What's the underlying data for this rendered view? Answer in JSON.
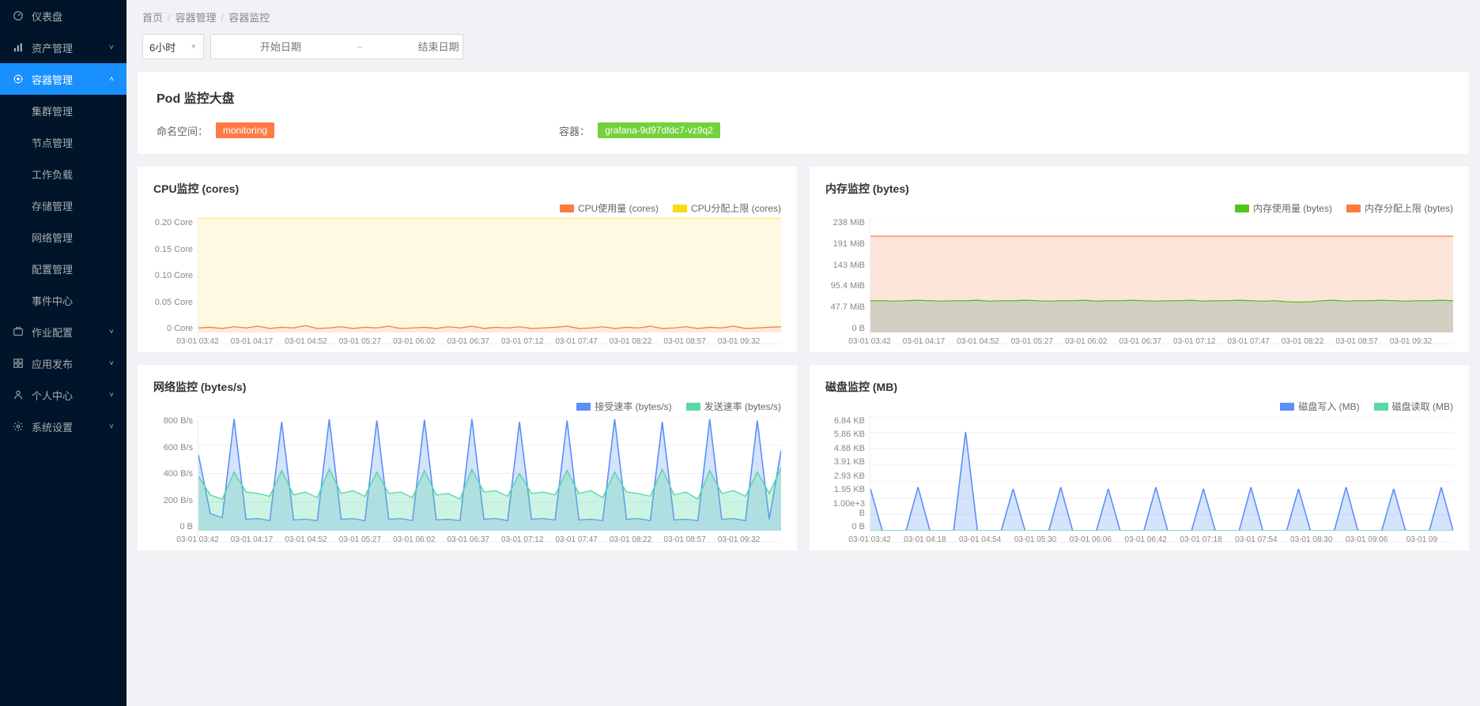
{
  "sidebar": {
    "items": [
      {
        "icon": "dashboard",
        "label": "仪表盘",
        "expandable": false
      },
      {
        "icon": "bars",
        "label": "资产管理",
        "expandable": true,
        "arrow": "down"
      },
      {
        "icon": "container",
        "label": "容器管理",
        "expandable": true,
        "arrow": "up",
        "active": true,
        "children": [
          "集群管理",
          "节点管理",
          "工作负载",
          "存储管理",
          "网络管理",
          "配置管理",
          "事件中心"
        ]
      },
      {
        "icon": "job",
        "label": "作业配置",
        "expandable": true,
        "arrow": "down"
      },
      {
        "icon": "deploy",
        "label": "应用发布",
        "expandable": true,
        "arrow": "down"
      },
      {
        "icon": "user",
        "label": "个人中心",
        "expandable": true,
        "arrow": "down"
      },
      {
        "icon": "gear",
        "label": "系统设置",
        "expandable": true,
        "arrow": "down"
      }
    ]
  },
  "breadcrumb": [
    "首页",
    "容器管理",
    "容器监控"
  ],
  "filter": {
    "time_value": "6小时",
    "start_placeholder": "开始日期",
    "end_placeholder": "结束日期"
  },
  "header": {
    "title": "Pod 监控大盘",
    "namespace_label": "命名空间：",
    "namespace_value": "monitoring",
    "container_label": "容器：",
    "container_value": "grafana-9d97dfdc7-vz9q2"
  },
  "x_ticks": [
    "03-01 03:42",
    "03-01 04:17",
    "03-01 04:52",
    "03-01 05:27",
    "03-01 06:02",
    "03-01 06:37",
    "03-01 07:12",
    "03-01 07:47",
    "03-01 08:22",
    "03-01 08:57",
    "03-01 09:32"
  ],
  "x_ticks_disk": [
    "03-01 03:42",
    "03-01 04:18",
    "03-01 04:54",
    "03-01 05:30",
    "03-01 06:06",
    "03-01 06:42",
    "03-01 07:18",
    "03-01 07:54",
    "03-01 08:30",
    "03-01 09:06",
    "03-01 09"
  ],
  "charts": {
    "cpu": {
      "title": "CPU监控 (cores)",
      "legend": [
        {
          "label": "CPU使用量 (cores)",
          "color": "#ff7a45"
        },
        {
          "label": "CPU分配上限 (cores)",
          "color": "#fadb14"
        }
      ],
      "y_ticks": [
        "0.20 Core",
        "0.15 Core",
        "0.10 Core",
        "0.05 Core",
        "0 Core"
      ],
      "ylim": [
        0,
        0.2
      ],
      "series": {
        "limit": {
          "color": "#fadb14",
          "fill": "#fef9e0",
          "values": [
            0.2,
            0.2,
            0.2,
            0.2,
            0.2,
            0.2,
            0.2,
            0.2,
            0.2,
            0.2,
            0.2,
            0.2,
            0.2,
            0.2,
            0.2,
            0.2,
            0.2,
            0.2,
            0.2,
            0.2,
            0.2,
            0.2,
            0.2,
            0.2,
            0.2,
            0.2,
            0.2,
            0.2,
            0.2,
            0.2,
            0.2,
            0.2,
            0.2,
            0.2,
            0.2,
            0.2,
            0.2,
            0.2,
            0.2,
            0.2,
            0.2,
            0.2,
            0.2,
            0.2,
            0.2,
            0.2,
            0.2,
            0.2,
            0.2,
            0.2
          ]
        },
        "usage": {
          "color": "#ff7a45",
          "fill": "#ffe9dd",
          "values": [
            0.008,
            0.009,
            0.007,
            0.01,
            0.008,
            0.011,
            0.007,
            0.009,
            0.008,
            0.012,
            0.007,
            0.008,
            0.01,
            0.007,
            0.009,
            0.008,
            0.011,
            0.007,
            0.008,
            0.009,
            0.007,
            0.01,
            0.008,
            0.011,
            0.007,
            0.009,
            0.008,
            0.01,
            0.007,
            0.008,
            0.009,
            0.011,
            0.007,
            0.008,
            0.01,
            0.007,
            0.009,
            0.008,
            0.011,
            0.007,
            0.008,
            0.01,
            0.007,
            0.009,
            0.008,
            0.011,
            0.007,
            0.008,
            0.009,
            0.01
          ]
        }
      }
    },
    "mem": {
      "title": "内存监控 (bytes)",
      "legend": [
        {
          "label": "内存使用量 (bytes)",
          "color": "#52c41a"
        },
        {
          "label": "内存分配上限 (bytes)",
          "color": "#ff7a45"
        }
      ],
      "y_ticks": [
        "238 MiB",
        "191 MiB",
        "143 MiB",
        "95.4 MiB",
        "47.7 MiB",
        "0 B"
      ],
      "ylim": [
        0,
        238
      ],
      "series": {
        "limit": {
          "color": "#ff7a45",
          "fill": "#fde5dc",
          "values": [
            200,
            200,
            200,
            200,
            200,
            200,
            200,
            200,
            200,
            200,
            200,
            200,
            200,
            200,
            200,
            200,
            200,
            200,
            200,
            200,
            200,
            200,
            200,
            200,
            200,
            200,
            200,
            200,
            200,
            200,
            200,
            200,
            200,
            200,
            200,
            200,
            200,
            200,
            200,
            200,
            200,
            200,
            200,
            200,
            200,
            200,
            200,
            200,
            200,
            200
          ]
        },
        "usage": {
          "color": "#52c41a",
          "fill": "#d3cfc2",
          "values": [
            66,
            66,
            65,
            66,
            67,
            66,
            65,
            66,
            66,
            67,
            65,
            66,
            66,
            67,
            66,
            65,
            66,
            66,
            67,
            65,
            66,
            66,
            67,
            66,
            65,
            66,
            66,
            67,
            65,
            66,
            66,
            67,
            66,
            65,
            66,
            64,
            63,
            64,
            66,
            67,
            65,
            66,
            66,
            67,
            66,
            65,
            66,
            66,
            67,
            66
          ]
        }
      }
    },
    "net": {
      "title": "网络监控 (bytes/s)",
      "legend": [
        {
          "label": "接受速率 (bytes/s)",
          "color": "#5b8ff9"
        },
        {
          "label": "发送速率 (bytes/s)",
          "color": "#5ad8a6"
        }
      ],
      "y_ticks": [
        "800 B/s",
        "600 B/s",
        "400 B/s",
        "200 B/s",
        "0 B"
      ],
      "ylim": [
        0,
        800
      ],
      "series": {
        "recv": {
          "color": "#5b8ff9",
          "fill": "rgba(91,143,249,0.25)",
          "values": [
            530,
            120,
            90,
            780,
            80,
            85,
            70,
            760,
            75,
            80,
            70,
            780,
            80,
            85,
            70,
            770,
            80,
            85,
            70,
            775,
            75,
            80,
            70,
            780,
            80,
            85,
            70,
            760,
            80,
            85,
            75,
            770,
            75,
            80,
            70,
            780,
            80,
            85,
            70,
            760,
            75,
            80,
            70,
            780,
            80,
            85,
            70,
            770,
            80,
            560
          ]
        },
        "send": {
          "color": "#5ad8a6",
          "fill": "rgba(90,216,166,0.3)",
          "values": [
            380,
            250,
            220,
            410,
            270,
            260,
            240,
            420,
            250,
            270,
            230,
            430,
            260,
            280,
            240,
            410,
            260,
            270,
            230,
            420,
            250,
            260,
            220,
            430,
            270,
            280,
            240,
            400,
            260,
            270,
            250,
            420,
            260,
            280,
            230,
            410,
            270,
            260,
            240,
            430,
            250,
            270,
            220,
            420,
            260,
            280,
            240,
            410,
            260,
            440
          ]
        }
      }
    },
    "disk": {
      "title": "磁盘监控 (MB)",
      "legend": [
        {
          "label": "磁盘写入 (MB)",
          "color": "#5b8ff9"
        },
        {
          "label": "磁盘读取 (MB)",
          "color": "#5ad8a6"
        }
      ],
      "y_ticks": [
        "6.84 KB",
        "5.86 KB",
        "4.88 KB",
        "3.91 KB",
        "2.93 KB",
        "1.95 KB",
        "1.00e+3 B",
        "0 B"
      ],
      "ylim": [
        0,
        6.84
      ],
      "series": {
        "write": {
          "color": "#5b8ff9",
          "fill": "rgba(91,143,249,0.25)",
          "values": [
            2.5,
            0,
            0,
            0,
            2.6,
            0,
            0,
            0,
            5.9,
            0,
            0,
            0,
            2.5,
            0,
            0,
            0,
            2.6,
            0,
            0,
            0,
            2.5,
            0,
            0,
            0,
            2.6,
            0,
            0,
            0,
            2.5,
            0,
            0,
            0,
            2.6,
            0,
            0,
            0,
            2.5,
            0,
            0,
            0,
            2.6,
            0,
            0,
            0,
            2.5,
            0,
            0,
            0,
            2.6,
            0
          ]
        },
        "read": {
          "color": "#5ad8a6",
          "fill": "rgba(90,216,166,0.3)",
          "values": [
            0,
            0,
            0,
            0,
            0,
            0,
            0,
            0,
            0,
            0,
            0,
            0,
            0,
            0,
            0,
            0,
            0,
            0,
            0,
            0,
            0,
            0,
            0,
            0,
            0,
            0,
            0,
            0,
            0,
            0,
            0,
            0,
            0,
            0,
            0,
            0,
            0,
            0,
            0,
            0,
            0,
            0,
            0,
            0,
            0,
            0,
            0,
            0,
            0,
            0
          ]
        }
      }
    }
  },
  "colors": {
    "sidebar_bg": "#001529",
    "active": "#1890ff",
    "page_bg": "#f0f2f5",
    "card_bg": "#ffffff"
  }
}
